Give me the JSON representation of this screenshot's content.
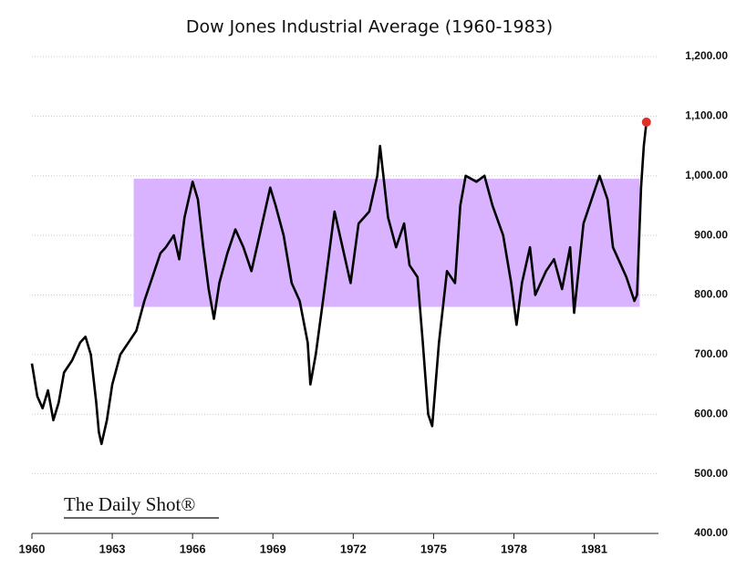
{
  "chart_data": {
    "type": "line",
    "title": "Dow Jones Industrial Average (1960-1983)",
    "source": "The Daily Shot®",
    "x": [
      1960.0,
      1960.2,
      1960.4,
      1960.6,
      1960.8,
      1961.0,
      1961.2,
      1961.5,
      1961.8,
      1962.0,
      1962.2,
      1962.4,
      1962.5,
      1962.6,
      1962.8,
      1963.0,
      1963.3,
      1963.6,
      1963.9,
      1964.2,
      1964.5,
      1964.8,
      1965.0,
      1965.3,
      1965.5,
      1965.7,
      1966.0,
      1966.2,
      1966.4,
      1966.6,
      1966.8,
      1967.0,
      1967.3,
      1967.6,
      1967.9,
      1968.2,
      1968.5,
      1968.9,
      1969.1,
      1969.4,
      1969.7,
      1970.0,
      1970.3,
      1970.4,
      1970.6,
      1970.9,
      1971.3,
      1971.6,
      1971.9,
      1972.2,
      1972.6,
      1972.9,
      1973.0,
      1973.3,
      1973.6,
      1973.9,
      1974.1,
      1974.4,
      1974.6,
      1974.8,
      1974.95,
      1975.2,
      1975.5,
      1975.8,
      1976.0,
      1976.2,
      1976.6,
      1976.9,
      1977.2,
      1977.6,
      1977.9,
      1978.1,
      1978.3,
      1978.6,
      1978.8,
      1979.2,
      1979.5,
      1979.8,
      1980.1,
      1980.25,
      1980.6,
      1980.9,
      1981.2,
      1981.5,
      1981.7,
      1981.9,
      1982.2,
      1982.5,
      1982.6,
      1982.75,
      1982.85,
      1982.95
    ],
    "series": [
      {
        "name": "Dow Jones Industrial Average",
        "color": "#000000",
        "values": [
          685,
          630,
          610,
          640,
          590,
          620,
          670,
          690,
          720,
          730,
          700,
          620,
          570,
          550,
          590,
          650,
          700,
          720,
          740,
          790,
          830,
          870,
          880,
          900,
          860,
          930,
          990,
          960,
          880,
          810,
          760,
          820,
          870,
          910,
          880,
          840,
          900,
          980,
          950,
          900,
          820,
          790,
          720,
          650,
          700,
          800,
          940,
          880,
          820,
          920,
          940,
          1000,
          1050,
          930,
          880,
          920,
          850,
          830,
          720,
          600,
          580,
          720,
          840,
          820,
          950,
          1000,
          990,
          1000,
          950,
          900,
          820,
          750,
          820,
          880,
          800,
          840,
          860,
          810,
          880,
          770,
          920,
          960,
          1000,
          960,
          880,
          860,
          830,
          790,
          800,
          980,
          1050,
          1090
        ]
      }
    ],
    "marker_color": "#e0302a",
    "band": {
      "color": "#d9b3ff",
      "x": [
        1963.8,
        1982.7
      ],
      "y": [
        780,
        995
      ]
    },
    "xlim": [
      1960,
      1983.4
    ],
    "xticks": [
      1960,
      1963,
      1966,
      1969,
      1972,
      1975,
      1978,
      1981
    ],
    "ylim": [
      400,
      1200
    ],
    "yticks": [
      {
        "value": 400,
        "label": "400.00"
      },
      {
        "value": 500,
        "label": "500.00"
      },
      {
        "value": 600,
        "label": "600.00"
      },
      {
        "value": 700,
        "label": "700.00"
      },
      {
        "value": 800,
        "label": "800.00"
      },
      {
        "value": 900,
        "label": "900.00"
      },
      {
        "value": 1000,
        "label": "1,000.00"
      },
      {
        "value": 1100,
        "label": "1,100.00"
      },
      {
        "value": 1200,
        "label": "1,200.00"
      }
    ],
    "grid": true,
    "y_axis_side": "right"
  }
}
